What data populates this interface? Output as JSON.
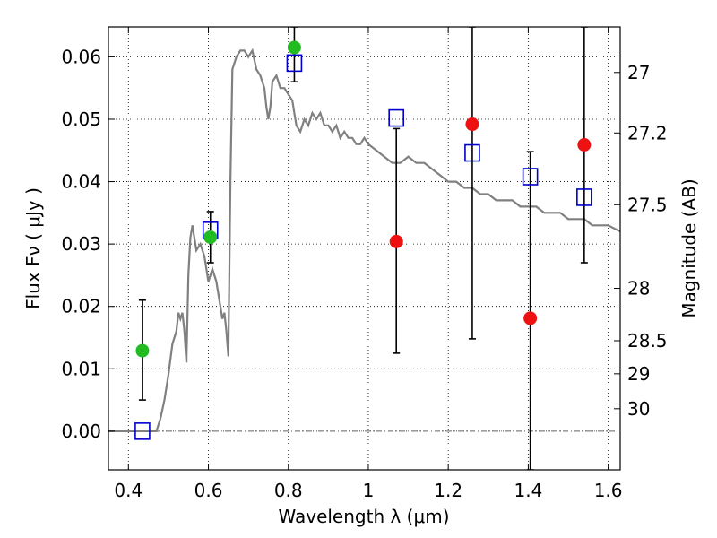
{
  "chart_data": {
    "type": "scatter",
    "title": "",
    "xlabel": "Wavelength  λ (μm)",
    "ylabel": "Flux  Fν  ( μJy )",
    "y2label": "Magnitude (AB)",
    "xlim": [
      0.35,
      1.63
    ],
    "ylim": [
      -0.0062,
      0.0648
    ],
    "grid": true,
    "xticks": [
      0.4,
      0.6,
      0.8,
      1.0,
      1.2,
      1.4,
      1.6
    ],
    "xtick_labels": [
      "0.4",
      "0.6",
      "0.8",
      "1",
      "1.2",
      "1.4",
      "1.6"
    ],
    "yticks": [
      0.0,
      0.01,
      0.02,
      0.03,
      0.04,
      0.05,
      0.06
    ],
    "ytick_labels": [
      "0.00",
      "0.01",
      "0.02",
      "0.03",
      "0.04",
      "0.05",
      "0.06"
    ],
    "y2ticks": [
      {
        "label": "27",
        "flux": 0.0575
      },
      {
        "label": "27.2",
        "flux": 0.0478
      },
      {
        "label": "27.5",
        "flux": 0.0363
      },
      {
        "label": "28",
        "flux": 0.0229
      },
      {
        "label": "28.5",
        "flux": 0.0145
      },
      {
        "label": "29",
        "flux": 0.0092
      },
      {
        "label": "30",
        "flux": 0.0036
      }
    ],
    "model_sed": {
      "color": "#808080",
      "x": [
        0.35,
        0.47,
        0.48,
        0.49,
        0.5,
        0.51,
        0.52,
        0.525,
        0.53,
        0.535,
        0.54,
        0.545,
        0.55,
        0.555,
        0.56,
        0.565,
        0.57,
        0.58,
        0.59,
        0.6,
        0.61,
        0.62,
        0.63,
        0.635,
        0.64,
        0.645,
        0.65,
        0.655,
        0.66,
        0.67,
        0.68,
        0.69,
        0.7,
        0.71,
        0.72,
        0.73,
        0.74,
        0.745,
        0.75,
        0.755,
        0.76,
        0.77,
        0.78,
        0.79,
        0.8,
        0.81,
        0.815,
        0.82,
        0.83,
        0.84,
        0.85,
        0.86,
        0.87,
        0.88,
        0.89,
        0.9,
        0.91,
        0.92,
        0.93,
        0.94,
        0.95,
        0.96,
        0.97,
        0.98,
        0.99,
        1.0,
        1.02,
        1.04,
        1.06,
        1.08,
        1.1,
        1.12,
        1.14,
        1.16,
        1.18,
        1.2,
        1.22,
        1.24,
        1.26,
        1.28,
        1.3,
        1.32,
        1.34,
        1.36,
        1.38,
        1.4,
        1.42,
        1.44,
        1.46,
        1.48,
        1.5,
        1.52,
        1.54,
        1.56,
        1.58,
        1.6,
        1.63
      ],
      "y": [
        0.0,
        0.0,
        0.002,
        0.005,
        0.009,
        0.014,
        0.016,
        0.019,
        0.018,
        0.019,
        0.016,
        0.011,
        0.025,
        0.031,
        0.033,
        0.031,
        0.029,
        0.03,
        0.028,
        0.024,
        0.026,
        0.024,
        0.02,
        0.018,
        0.019,
        0.016,
        0.012,
        0.04,
        0.058,
        0.06,
        0.061,
        0.061,
        0.06,
        0.061,
        0.058,
        0.057,
        0.055,
        0.052,
        0.05,
        0.052,
        0.056,
        0.057,
        0.055,
        0.055,
        0.054,
        0.053,
        0.051,
        0.049,
        0.048,
        0.05,
        0.049,
        0.051,
        0.05,
        0.051,
        0.049,
        0.049,
        0.048,
        0.049,
        0.047,
        0.048,
        0.047,
        0.047,
        0.046,
        0.046,
        0.047,
        0.046,
        0.045,
        0.044,
        0.043,
        0.043,
        0.044,
        0.043,
        0.043,
        0.042,
        0.041,
        0.04,
        0.04,
        0.039,
        0.039,
        0.038,
        0.038,
        0.037,
        0.037,
        0.037,
        0.036,
        0.036,
        0.036,
        0.035,
        0.035,
        0.035,
        0.034,
        0.034,
        0.034,
        0.033,
        0.033,
        0.033,
        0.032
      ]
    },
    "series": [
      {
        "marker": "square-open",
        "color": "#0000cc",
        "x": [
          0.435,
          0.605,
          0.815,
          1.07,
          1.26,
          1.405,
          1.54
        ],
        "y": [
          0.0,
          0.0322,
          0.059,
          0.0502,
          0.0446,
          0.0408,
          0.0375
        ]
      },
      {
        "marker": "circle",
        "color": "#22bb22",
        "x": [
          0.435,
          0.605,
          0.815
        ],
        "y": [
          0.0129,
          0.0311,
          0.0615
        ],
        "yerr_low": [
          0.005,
          0.027,
          0.056
        ],
        "yerr_high": [
          0.021,
          0.0352,
          0.0648
        ]
      },
      {
        "marker": "circle",
        "color": "#ee1111",
        "x": [
          1.07,
          1.26,
          1.405,
          1.54
        ],
        "y": [
          0.0304,
          0.0492,
          0.0181,
          0.0459
        ],
        "yerr_low": [
          0.0125,
          0.0148,
          -0.0062,
          0.027
        ],
        "yerr_high": [
          0.0485,
          0.0648,
          0.0448,
          0.0648
        ]
      }
    ]
  }
}
